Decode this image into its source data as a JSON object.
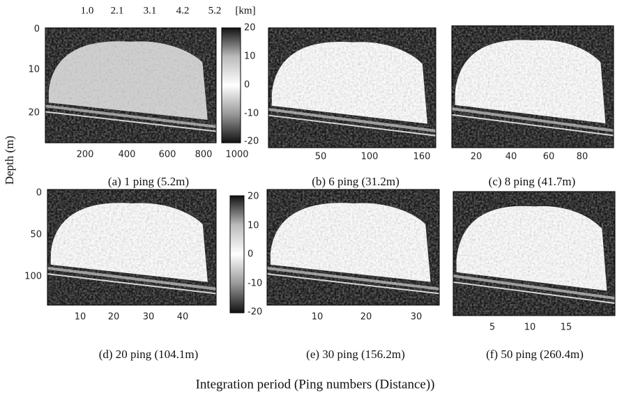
{
  "top_axis": {
    "labels": [
      "1.0",
      "2.1",
      "3.1",
      "4.2",
      "5.2"
    ],
    "unit": "[km]"
  },
  "y_axis_label": "Depth (m)",
  "x_axis_label": "Integration period (Ping numbers (Distance))",
  "panels": [
    {
      "caption": "(a) 1 ping (5.2m)",
      "xticks": [
        "200",
        "400",
        "600",
        "800",
        "1000"
      ],
      "yticks": [
        "0",
        "10",
        "20"
      ]
    },
    {
      "caption": "(b) 6 ping (31.2m)",
      "xticks": [
        "50",
        "100",
        "160"
      ]
    },
    {
      "caption": "(c) 8 ping (41.7m)",
      "xticks": [
        "20",
        "40",
        "60",
        "80"
      ]
    },
    {
      "caption": "(d) 20 ping (104.1m)",
      "xticks": [
        "10",
        "20",
        "30",
        "40"
      ],
      "yticks": [
        "0",
        "50",
        "100"
      ]
    },
    {
      "caption": "(e) 30 ping (156.2m)",
      "xticks": [
        "10",
        "20",
        "30"
      ]
    },
    {
      "caption": "(f) 50 ping (260.4m)",
      "xticks": [
        "5",
        "10",
        "15"
      ]
    }
  ],
  "colorbars": [
    {
      "ticks": [
        "20",
        "10",
        "0",
        "-10",
        "-20"
      ]
    },
    {
      "ticks": [
        "20",
        "10",
        "0",
        "-10",
        "-20"
      ]
    }
  ]
}
